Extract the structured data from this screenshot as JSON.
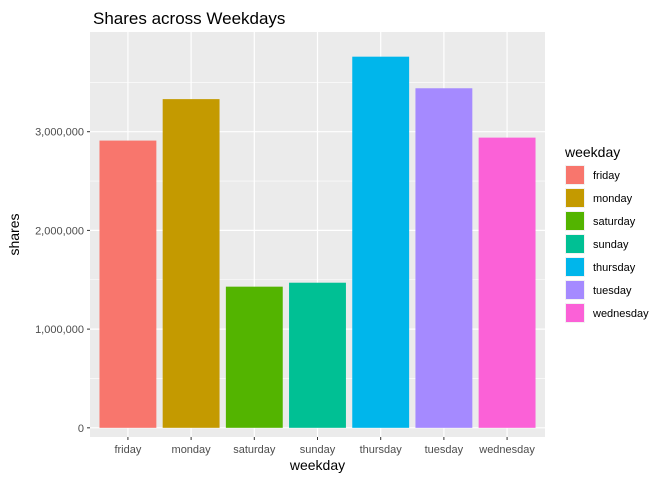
{
  "chart_data": {
    "type": "bar",
    "title": "Shares across Weekdays",
    "xlabel": "weekday",
    "ylabel": "shares",
    "categories": [
      "friday",
      "monday",
      "saturday",
      "sunday",
      "thursday",
      "tuesday",
      "wednesday"
    ],
    "values": [
      2910000,
      3330000,
      1430000,
      1470000,
      3760000,
      3440000,
      2940000
    ],
    "ylim": [
      -93000,
      4010000
    ],
    "yticks": [
      0,
      1000000,
      2000000,
      3000000
    ],
    "ytick_labels": [
      "0",
      "1,000,000",
      "2,000,000",
      "3,000,000"
    ],
    "colors": [
      "#F8766D",
      "#C49A00",
      "#53B400",
      "#00C094",
      "#00B6EB",
      "#A58AFF",
      "#FB61D7"
    ],
    "grid": true,
    "panel_background": "#EBEBEB",
    "grid_color": "#FFFFFF",
    "legend": {
      "title": "weekday",
      "placement": "right",
      "labels": [
        "friday",
        "monday",
        "saturday",
        "sunday",
        "thursday",
        "tuesday",
        "wednesday"
      ]
    }
  }
}
